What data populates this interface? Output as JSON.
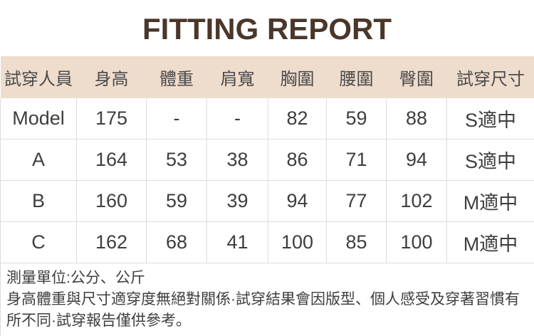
{
  "title": "FITTING REPORT",
  "colors": {
    "title_text": "#4a372a",
    "header_background": "#eedccd",
    "table_border": "#dcdcdc",
    "body_text": "#3e3e3e"
  },
  "table": {
    "columns": [
      "試穿人員",
      "身高",
      "體重",
      "肩寬",
      "胸圍",
      "腰圍",
      "臀圍",
      "試穿尺寸"
    ],
    "rows": [
      [
        "Model",
        "175",
        "-",
        "-",
        "82",
        "59",
        "88",
        "S適中"
      ],
      [
        "A",
        "164",
        "53",
        "38",
        "86",
        "71",
        "94",
        "S適中"
      ],
      [
        "B",
        "160",
        "59",
        "39",
        "94",
        "77",
        "102",
        "M適中"
      ],
      [
        "C",
        "162",
        "68",
        "41",
        "100",
        "85",
        "100",
        "M適中"
      ]
    ]
  },
  "notes": {
    "unit_line": "測量單位:公分、公斤",
    "disclaimer": "身高體重與尺寸適穿度無絕對關係·試穿結果會因版型、個人感受及穿著習慣有所不同·試穿報告僅供參考。"
  }
}
